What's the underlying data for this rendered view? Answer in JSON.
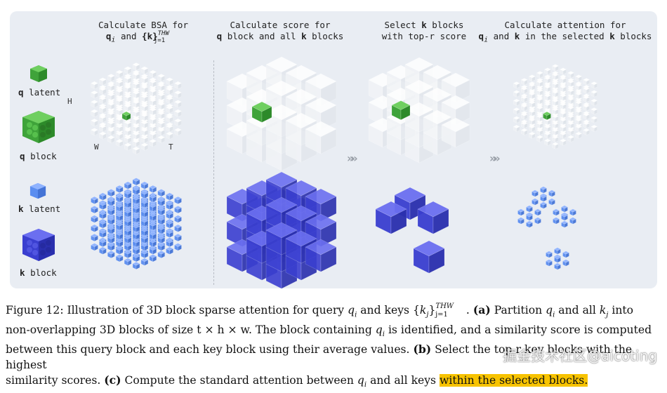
{
  "headers": {
    "col1_line1": "Calculate BSA for",
    "col1_q": "q",
    "col1_and": "and",
    "col1_k": "{k}",
    "col1_sup": "THW",
    "col1_sub": "j=1",
    "col2_line1": "Calculate score for",
    "col2_q": "q",
    "col2_mid": "block and all",
    "col2_k": "k",
    "col2_end": "blocks",
    "col3_line1a": "Select",
    "col3_k": "k",
    "col3_line1b": "blocks",
    "col3_line2": "with top-r score",
    "col4_line1": "Calculate attention for",
    "col4_q": "q",
    "col4_and": "and",
    "col4_k": "k",
    "col4_mid": "in the selected",
    "col4_k2": "k",
    "col4_end": "blocks"
  },
  "legend": {
    "q_latent_bold": "q",
    "q_latent_rest": "latent",
    "q_block_bold": "q",
    "q_block_rest": "block",
    "k_latent_bold": "k",
    "k_latent_rest": "latent",
    "k_block_bold": "k",
    "k_block_rest": "block"
  },
  "axes": {
    "h": "H",
    "w": "W",
    "t": "T"
  },
  "colors": {
    "green": "#3fa33a",
    "light_blue": "#5b8ef0",
    "dark_blue": "#3a3fd0",
    "highlight": "#f7c300",
    "panel": "#e9edf3"
  },
  "arrows": [
    "»»",
    "»»"
  ],
  "caption": {
    "fig": "Figure 12: Illustration of 3D block sparse attention for query",
    "qi": "q",
    "i": "i",
    "and_keys": "and keys",
    "k_set": "{k",
    "j": "j",
    "close": "}",
    "sup": "THW",
    "sub": "j=1",
    "a_label": "(a)",
    "a_text": "Partition",
    "a_text2": "and all",
    "a_text3": "into",
    "line2": "non-overlapping 3D blocks of size t × h × w. The block containing",
    "line2b": "is identified, and a similarity score is computed",
    "line3": "between this query block and each key block using their average values.",
    "b_label": "(b)",
    "b_text": "Select the top-r key blocks with the highest",
    "line4": "similarity scores.",
    "c_label": "(c)",
    "c_text": "Compute the standard attention between",
    "c_text2": "and all keys",
    "c_highlight": "within the selected blocks."
  },
  "watermark": "掘金技术社区@aicoting"
}
